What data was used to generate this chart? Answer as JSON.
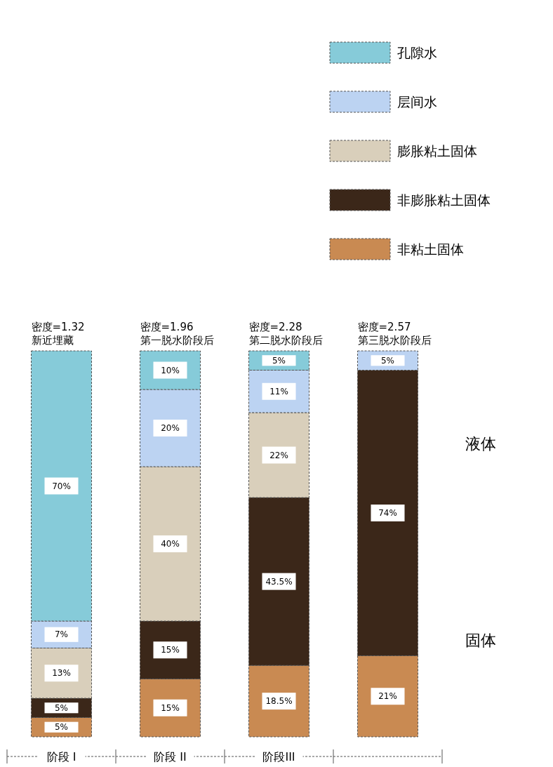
{
  "chart_data": {
    "type": "bar",
    "stacked": true,
    "legend": "top right",
    "categories": [
      "阶段 I",
      "阶段 II",
      "阶段III",
      null
    ],
    "series": [
      {
        "name": "非粘土固体",
        "color": "#c98a52",
        "values": [
          5,
          15,
          18.5,
          21
        ],
        "value_labels": [
          "5%",
          "15%",
          "18.5%",
          "21%"
        ]
      },
      {
        "name": "非膨胀粘土固体",
        "color": "#3b2719",
        "values": [
          5,
          15,
          43.5,
          74
        ],
        "value_labels": [
          "5%",
          "15%",
          "43.5%",
          "74%"
        ]
      },
      {
        "name": "膨胀粘土固体",
        "color": "#d9cfbb",
        "values": [
          13,
          40,
          22,
          null
        ],
        "value_labels": [
          "13%",
          "40%",
          "22%",
          null
        ]
      },
      {
        "name": "层间水",
        "color": "#bcd3f2",
        "values": [
          7,
          20,
          11,
          5
        ],
        "value_labels": [
          "7%",
          "20%",
          "11%",
          "5%"
        ]
      },
      {
        "name": "孔隙水",
        "color": "#86cbd9",
        "values": [
          70,
          10,
          5,
          null
        ],
        "value_labels": [
          "70%",
          "10%",
          "5%",
          null
        ]
      }
    ],
    "annotations": [
      "密度=1.32\n新近埋藏",
      "密度=1.96\n第一脱水阶段后",
      "密度=2.28\n第二脱水阶段后",
      "密度=2.57\n第三脱水阶段后",
      "液体",
      "固体"
    ]
  }
}
